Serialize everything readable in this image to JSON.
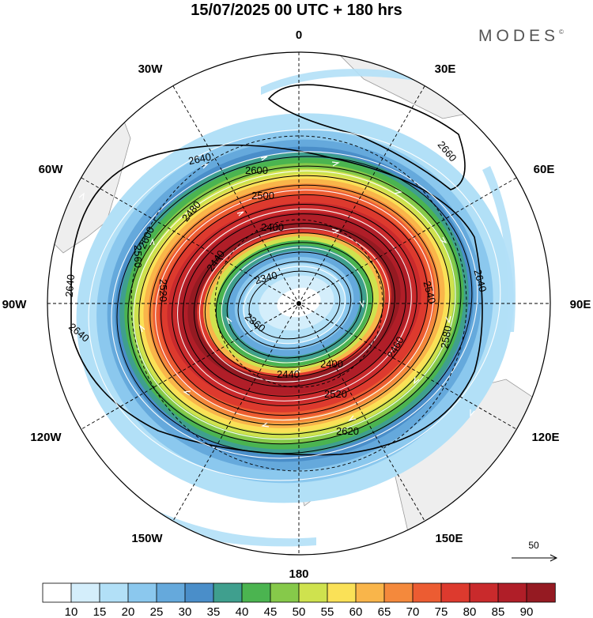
{
  "title": "15/07/2025  00 UTC  + 180 hrs",
  "brand": "MODES",
  "brand_mark": "©",
  "longitude_labels": {
    "n0": "0",
    "e30": "30E",
    "e60": "60E",
    "e90": "90E",
    "e120": "120E",
    "e150": "150E",
    "s180": "180",
    "w150": "150W",
    "w120": "120W",
    "w90": "90W",
    "w60": "60W",
    "w30": "30W"
  },
  "contour_labels": {
    "c2340": "2340",
    "c2360": "2360",
    "c2400a": "2400",
    "c2400b": "2400",
    "c2440a": "2440",
    "c2440b": "2440",
    "c2460": "2460",
    "c2480": "2480",
    "c2500": "2500",
    "c2520a": "2520",
    "c2520b": "2520",
    "c2540": "2540",
    "c2560": "2560",
    "c2580": "2580",
    "c2600a": "2600",
    "c2600b": "2600",
    "c2620": "2620",
    "c2640a": "2640",
    "c2640b": "2640",
    "c2640c": "2640",
    "c2640d": "2640",
    "c2660": "2660"
  },
  "reference_vector": {
    "label": "50"
  },
  "colorbar": {
    "colors": [
      "#ffffff",
      "#d4eefb",
      "#b2e0f7",
      "#8bc8ee",
      "#65a9dc",
      "#4a8ec9",
      "#3f9f8e",
      "#4bb450",
      "#86c94a",
      "#cfe24e",
      "#fae157",
      "#f9b54a",
      "#f4893c",
      "#ec5c32",
      "#dd3a2e",
      "#c92a2c",
      "#b01e28",
      "#951a22"
    ],
    "ticks": [
      "10",
      "15",
      "20",
      "25",
      "30",
      "35",
      "40",
      "45",
      "50",
      "55",
      "60",
      "65",
      "70",
      "75",
      "80",
      "85",
      "90"
    ]
  }
}
